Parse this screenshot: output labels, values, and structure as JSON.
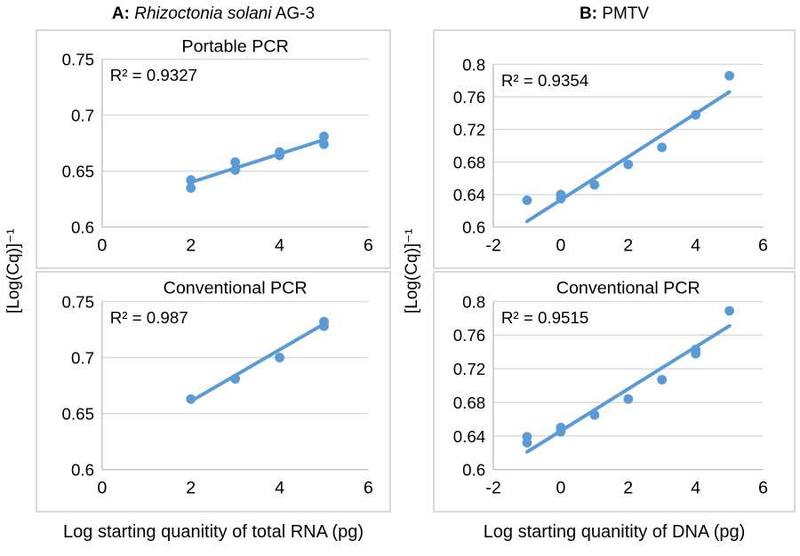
{
  "figure": {
    "panel_a": {
      "prefix": "A:",
      "species": "Rhizoctonia solani",
      "suffix": "AG-3"
    },
    "panel_b": {
      "prefix": "B:",
      "name": "PMTV"
    },
    "y_axis_label": "[Log(Cq)]⁻¹",
    "x_axis_label_left": "Log starting quanitity of total RNA (pg)",
    "x_axis_label_right": "Log starting quanitity of DNA (pg)",
    "colors": {
      "series": "#5B9BD5",
      "gridline": "#D9D9D9",
      "axis": "#BFBFBF",
      "box_border": "#D9D9D9",
      "text": "#000000"
    }
  },
  "chart_data": [
    {
      "id": "panel-a-portable-pcr",
      "type": "scatter",
      "title": "Portable PCR",
      "r2_label": "R² = 0.9327",
      "xlim": [
        0,
        6
      ],
      "ylim": [
        0.6,
        0.75
      ],
      "xticks": [
        0,
        2,
        4,
        6
      ],
      "xtick_labels": [
        "0",
        "2",
        "4",
        "6"
      ],
      "yticks": [
        0.6,
        0.65,
        0.7,
        0.75
      ],
      "ytick_labels": [
        "0.6",
        "0.65",
        "0.7",
        "0.75"
      ],
      "points": [
        [
          2,
          0.642
        ],
        [
          2,
          0.635
        ],
        [
          3,
          0.658
        ],
        [
          3,
          0.651
        ],
        [
          4,
          0.667
        ],
        [
          4,
          0.664
        ],
        [
          5,
          0.681
        ],
        [
          5,
          0.674
        ]
      ],
      "trendline": {
        "x1": 2,
        "y1": 0.64,
        "x2": 5,
        "y2": 0.678
      }
    },
    {
      "id": "panel-a-conventional-pcr",
      "type": "scatter",
      "title": "Conventional PCR",
      "r2_label": "R² = 0.987",
      "xlim": [
        0,
        6
      ],
      "ylim": [
        0.6,
        0.75
      ],
      "xticks": [
        0,
        2,
        4,
        6
      ],
      "xtick_labels": [
        "0",
        "2",
        "4",
        "6"
      ],
      "yticks": [
        0.6,
        0.65,
        0.7,
        0.75
      ],
      "ytick_labels": [
        "0.6",
        "0.65",
        "0.7",
        "0.75"
      ],
      "points": [
        [
          2,
          0.663
        ],
        [
          3,
          0.681
        ],
        [
          4,
          0.7
        ],
        [
          5,
          0.732
        ],
        [
          5,
          0.728
        ]
      ],
      "trendline": {
        "x1": 2,
        "y1": 0.661,
        "x2": 5,
        "y2": 0.73
      }
    },
    {
      "id": "panel-b-portable-pcr",
      "type": "scatter",
      "title": "",
      "r2_label": "R² = 0.9354",
      "xlim": [
        -2,
        6
      ],
      "ylim": [
        0.6,
        0.8
      ],
      "xticks": [
        -2,
        0,
        2,
        4,
        6
      ],
      "xtick_labels": [
        "-2",
        "0",
        "2",
        "4",
        "6"
      ],
      "yticks": [
        0.6,
        0.64,
        0.68,
        0.72,
        0.76,
        0.8
      ],
      "ytick_labels": [
        "0.6",
        "0.64",
        "0.68",
        "0.72",
        "0.76",
        "0.8"
      ],
      "points": [
        [
          -1,
          0.633
        ],
        [
          0,
          0.64
        ],
        [
          0,
          0.635
        ],
        [
          1,
          0.652
        ],
        [
          2,
          0.677
        ],
        [
          3,
          0.698
        ],
        [
          4,
          0.738
        ],
        [
          5,
          0.786
        ]
      ],
      "trendline": {
        "x1": -1,
        "y1": 0.607,
        "x2": 5,
        "y2": 0.766
      }
    },
    {
      "id": "panel-b-conventional-pcr",
      "type": "scatter",
      "title": "Conventional PCR",
      "r2_label": "R² = 0.9515",
      "xlim": [
        -2,
        6
      ],
      "ylim": [
        0.6,
        0.8
      ],
      "xticks": [
        -2,
        0,
        2,
        4,
        6
      ],
      "xtick_labels": [
        "-2",
        "0",
        "2",
        "4",
        "6"
      ],
      "yticks": [
        0.6,
        0.64,
        0.68,
        0.72,
        0.76,
        0.8
      ],
      "ytick_labels": [
        "0.6",
        "0.64",
        "0.68",
        "0.72",
        "0.76",
        "0.8"
      ],
      "points": [
        [
          -1,
          0.639
        ],
        [
          -1,
          0.632
        ],
        [
          0,
          0.65
        ],
        [
          0,
          0.645
        ],
        [
          1,
          0.665
        ],
        [
          2,
          0.684
        ],
        [
          3,
          0.707
        ],
        [
          4,
          0.743
        ],
        [
          4,
          0.738
        ],
        [
          5,
          0.789
        ]
      ],
      "trendline": {
        "x1": -1,
        "y1": 0.621,
        "x2": 5,
        "y2": 0.771
      }
    }
  ]
}
